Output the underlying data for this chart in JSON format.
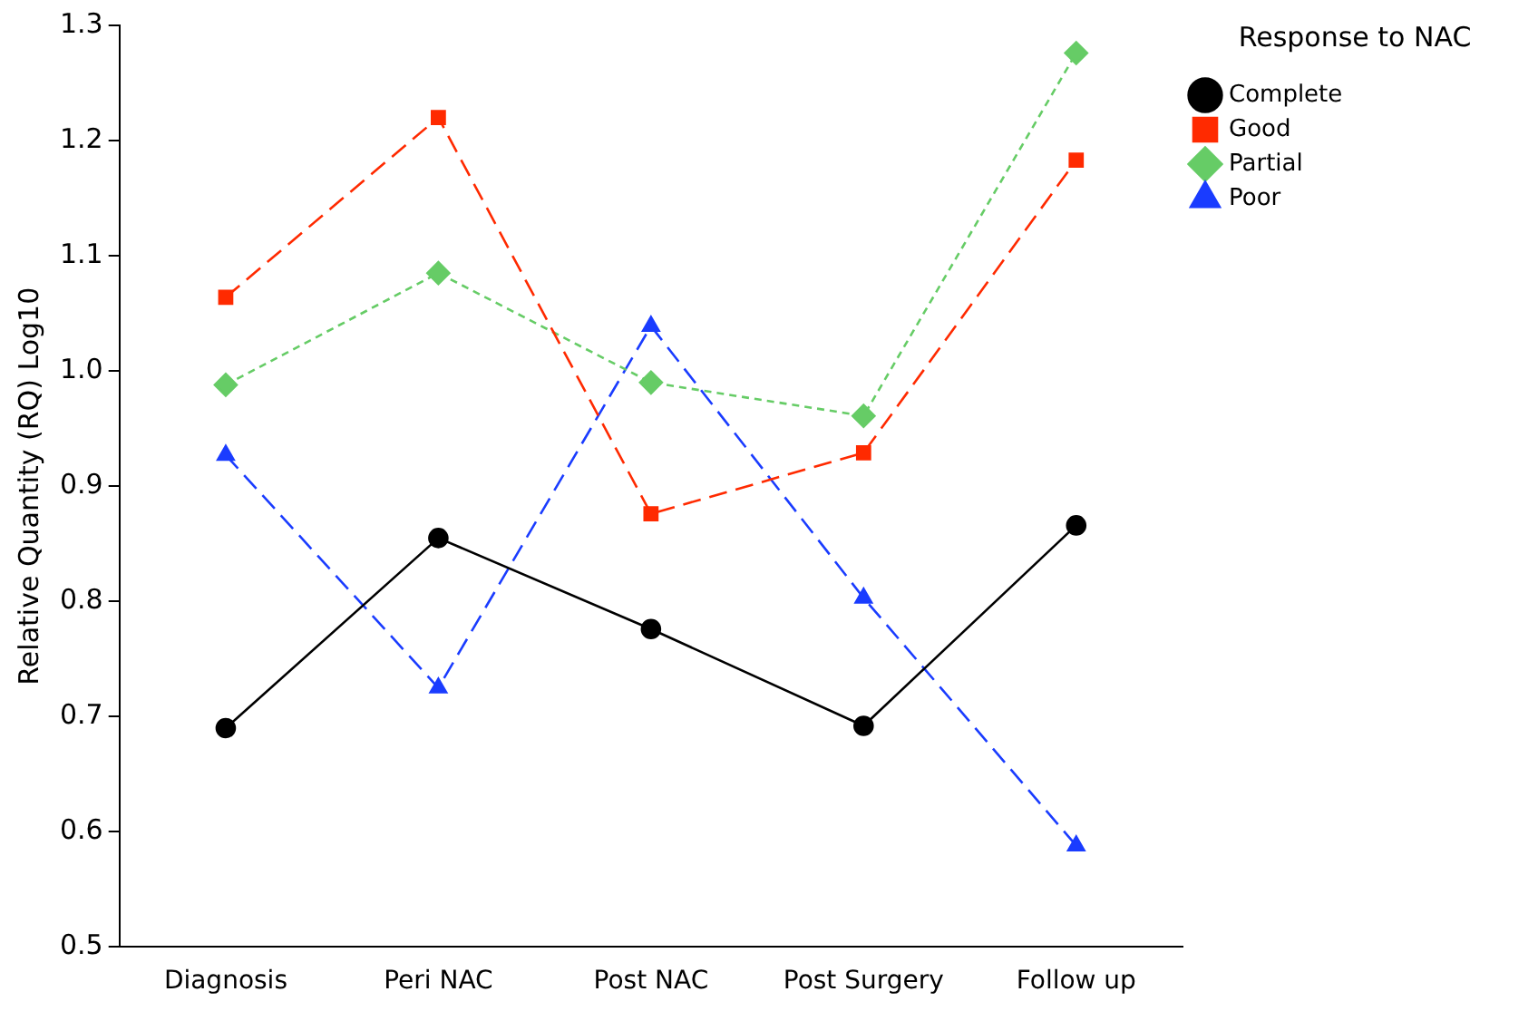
{
  "chart_data": {
    "type": "line",
    "ylabel": "Relative Quantity (RQ) Log10",
    "legend_title": "Response to NAC",
    "legend": "top right",
    "grid": false,
    "categories": [
      "Diagnosis",
      "Peri NAC",
      "Post NAC",
      "Post Surgery",
      "Follow up"
    ],
    "ylim": [
      0.5,
      1.3
    ],
    "yticks": [
      {
        "value": 0.5,
        "label": "0.5"
      },
      {
        "value": 0.6,
        "label": "0.6"
      },
      {
        "value": 0.7,
        "label": "0.7"
      },
      {
        "value": 0.8,
        "label": "0.8"
      },
      {
        "value": 0.9,
        "label": "0.9"
      },
      {
        "value": 1.0,
        "label": "1.0"
      },
      {
        "value": 1.1,
        "label": "1.1"
      },
      {
        "value": 1.2,
        "label": "1.2"
      },
      {
        "value": 1.3,
        "label": "1.3"
      }
    ],
    "series": [
      {
        "name": "Complete",
        "color": "#000000",
        "marker": "circle",
        "line_style": "solid",
        "values": [
          0.69,
          0.855,
          0.776,
          0.692,
          0.866
        ]
      },
      {
        "name": "Good",
        "color": "#ff2a00",
        "marker": "square",
        "line_style": "dashed",
        "values": [
          1.064,
          1.22,
          0.876,
          0.929,
          1.183
        ]
      },
      {
        "name": "Partial",
        "color": "#66cc66",
        "marker": "diamond",
        "line_style": "dotted",
        "values": [
          0.988,
          1.085,
          0.99,
          0.961,
          1.276
        ]
      },
      {
        "name": "Poor",
        "color": "#1a3cff",
        "marker": "triangle",
        "line_style": "dashed",
        "values": [
          0.927,
          0.725,
          1.039,
          0.803,
          0.588
        ]
      }
    ]
  }
}
